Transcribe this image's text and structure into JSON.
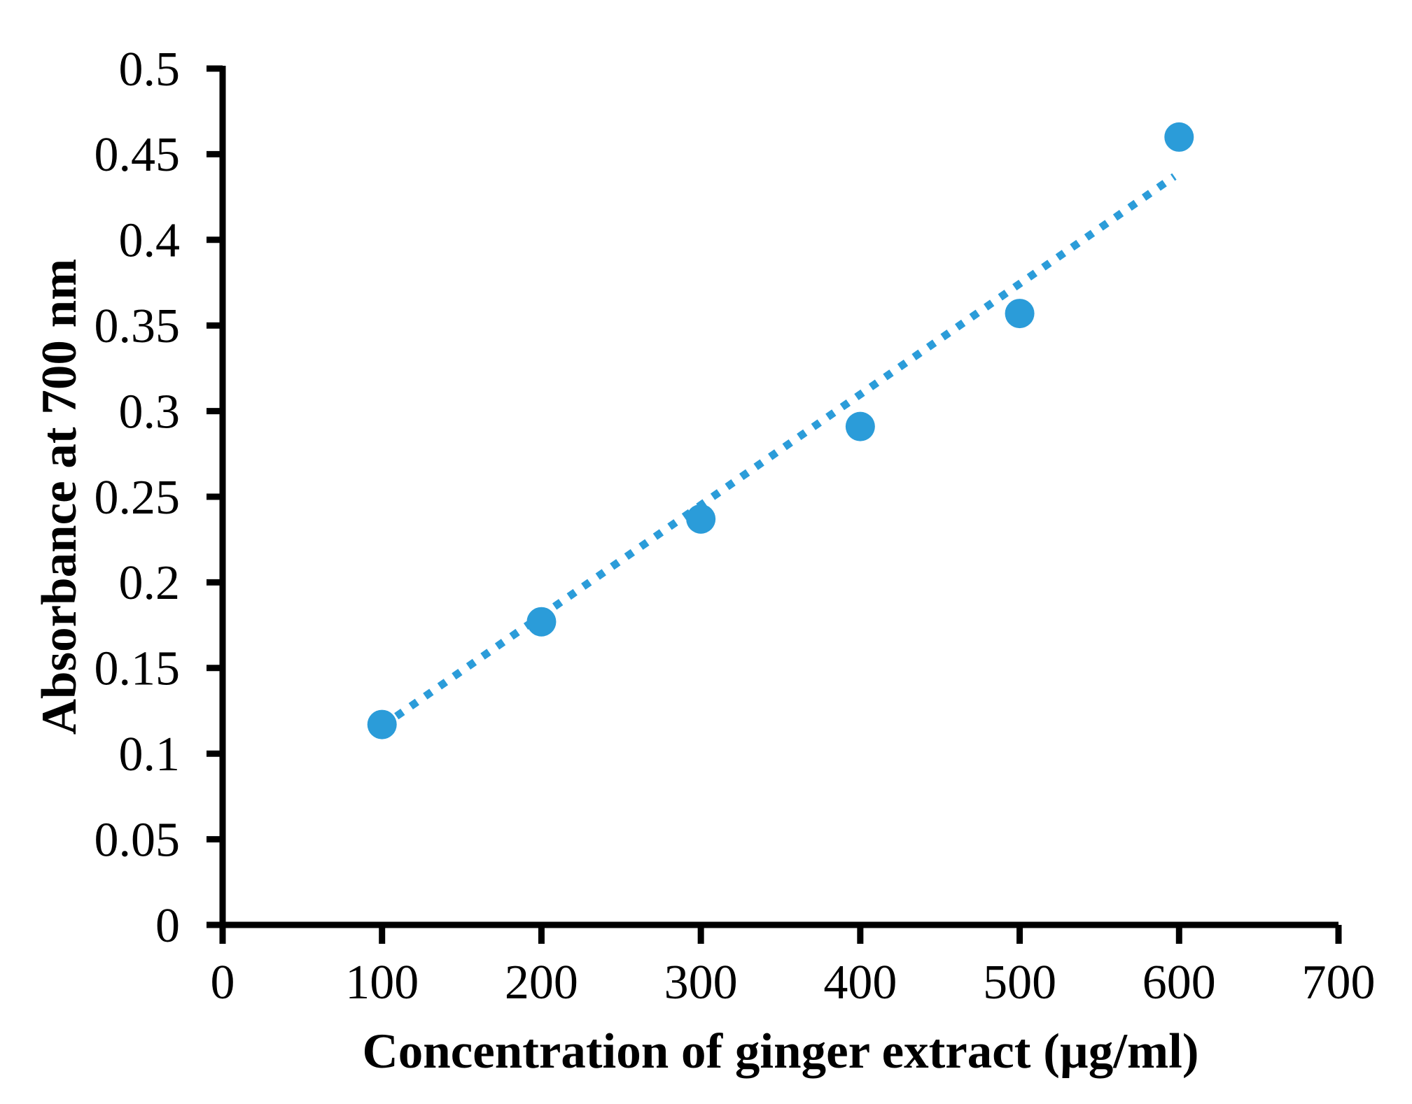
{
  "chart_data": {
    "type": "scatter",
    "title": "",
    "xlabel": "Concentration of ginger extract (µg/ml)",
    "ylabel": "Absorbance at 700 nm",
    "x": [
      100,
      200,
      300,
      400,
      500,
      600
    ],
    "y": [
      0.117,
      0.177,
      0.237,
      0.291,
      0.357,
      0.46
    ],
    "xlim": [
      0,
      700
    ],
    "ylim": [
      0,
      0.5
    ],
    "x_ticks": [
      "0",
      "100",
      "200",
      "300",
      "400",
      "500",
      "600",
      "700"
    ],
    "y_ticks": [
      "0",
      "0.05",
      "0.1",
      "0.15",
      "0.2",
      "0.25",
      "0.3",
      "0.35",
      "0.4",
      "0.45",
      "0.5"
    ],
    "grid": false,
    "legend": "none",
    "marker_color": "#2B9CD9",
    "axis_color": "#000000",
    "trendline": {
      "style": "dotted",
      "x": [
        100,
        597
      ],
      "y": [
        0.116,
        0.437
      ]
    }
  }
}
